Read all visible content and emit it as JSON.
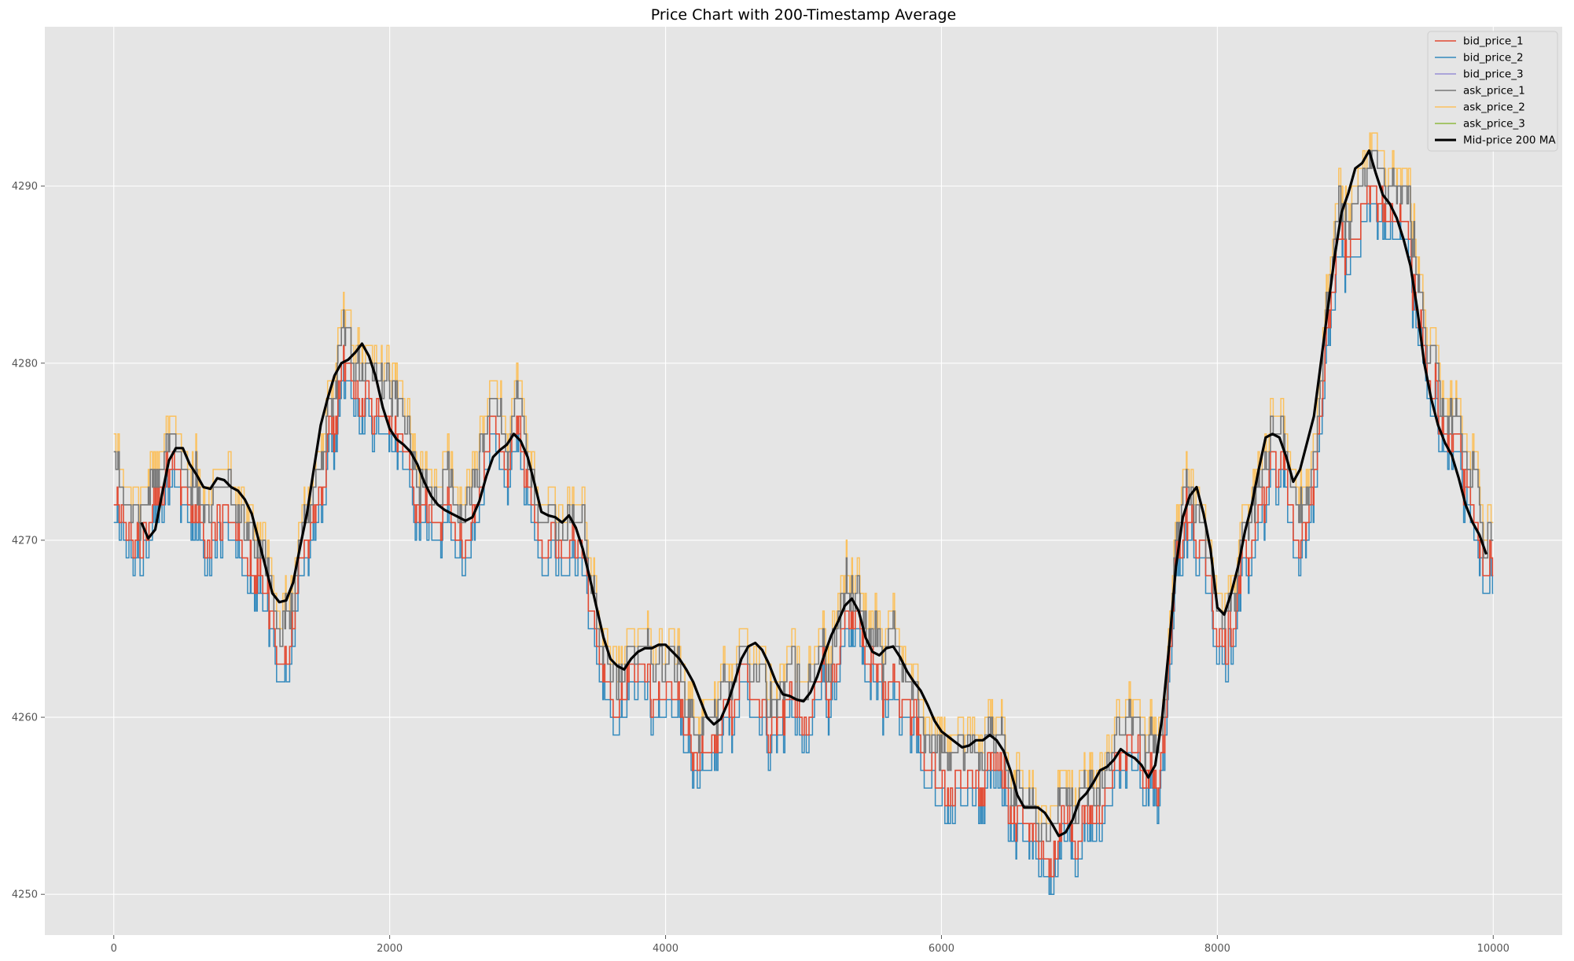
{
  "chart_data": {
    "type": "line",
    "title": "Price Chart with 200-Timestamp Average",
    "xlabel": "",
    "ylabel": "",
    "xlim": [
      -500,
      10500
    ],
    "ylim": [
      4247.7,
      4299.0
    ],
    "xticks": [
      0,
      2000,
      4000,
      6000,
      8000,
      10000
    ],
    "yticks": [
      4250,
      4260,
      4270,
      4280,
      4290
    ],
    "grid": true,
    "legend_position": "top-right",
    "colors": {
      "bid_price_1": "#E24A33",
      "bid_price_2": "#348ABD",
      "bid_price_3": "#988ED5",
      "ask_price_1": "#777777",
      "ask_price_2": "#FBC15E",
      "ask_price_3": "#8EBA42",
      "ma": "#000000"
    },
    "anchors": {
      "mid": [
        [
          0,
          4275
        ],
        [
          100,
          4272
        ],
        [
          200,
          4270.5
        ],
        [
          300,
          4272
        ],
        [
          400,
          4276
        ],
        [
          500,
          4276
        ],
        [
          600,
          4274
        ],
        [
          700,
          4273
        ],
        [
          800,
          4273
        ],
        [
          900,
          4272.5
        ],
        [
          1000,
          4270
        ],
        [
          1100,
          4267
        ],
        [
          1200,
          4266
        ],
        [
          1300,
          4267
        ],
        [
          1400,
          4271
        ],
        [
          1500,
          4275
        ],
        [
          1600,
          4279
        ],
        [
          1700,
          4281
        ],
        [
          1800,
          4281
        ],
        [
          1900,
          4278
        ],
        [
          2000,
          4276
        ],
        [
          2100,
          4275
        ],
        [
          2200,
          4273
        ],
        [
          2300,
          4272
        ],
        [
          2400,
          4272
        ],
        [
          2500,
          4273
        ],
        [
          2600,
          4274
        ],
        [
          2700,
          4275
        ],
        [
          2800,
          4276
        ],
        [
          2900,
          4276.5
        ],
        [
          3000,
          4275
        ],
        [
          3100,
          4272
        ],
        [
          3200,
          4271
        ],
        [
          3300,
          4271
        ],
        [
          3400,
          4270
        ],
        [
          3500,
          4266
        ],
        [
          3600,
          4263
        ],
        [
          3700,
          4263
        ],
        [
          3800,
          4264
        ],
        [
          3900,
          4264
        ],
        [
          4000,
          4264.5
        ],
        [
          4100,
          4263
        ],
        [
          4200,
          4261
        ],
        [
          4300,
          4260
        ],
        [
          4400,
          4261
        ],
        [
          4500,
          4263
        ],
        [
          4600,
          4264
        ],
        [
          4700,
          4263
        ],
        [
          4800,
          4261
        ],
        [
          4900,
          4261
        ],
        [
          5000,
          4261
        ],
        [
          5100,
          4263
        ],
        [
          5200,
          4265
        ],
        [
          5300,
          4267
        ],
        [
          5400,
          4266
        ],
        [
          5500,
          4264
        ],
        [
          5600,
          4264
        ],
        [
          5700,
          4263
        ],
        [
          5800,
          4261.5
        ],
        [
          5900,
          4260
        ],
        [
          6000,
          4259
        ],
        [
          6100,
          4258.5
        ],
        [
          6200,
          4258.5
        ],
        [
          6300,
          4259
        ],
        [
          6400,
          4258.5
        ],
        [
          6500,
          4256
        ],
        [
          6600,
          4254.5
        ],
        [
          6700,
          4254.5
        ],
        [
          6800,
          4253.5
        ],
        [
          6900,
          4254
        ],
        [
          7000,
          4255
        ],
        [
          7100,
          4256.5
        ],
        [
          7200,
          4258
        ],
        [
          7300,
          4258
        ],
        [
          7400,
          4257.5
        ],
        [
          7500,
          4257
        ],
        [
          7600,
          4261
        ],
        [
          7700,
          4268
        ],
        [
          7800,
          4272
        ],
        [
          7900,
          4272
        ],
        [
          8000,
          4266
        ],
        [
          8100,
          4267
        ],
        [
          8200,
          4271
        ],
        [
          8300,
          4274
        ],
        [
          8400,
          4276
        ],
        [
          8500,
          4276
        ],
        [
          8600,
          4273
        ],
        [
          8700,
          4276
        ],
        [
          8800,
          4282
        ],
        [
          8900,
          4287
        ],
        [
          9000,
          4290
        ],
        [
          9100,
          4292
        ],
        [
          9200,
          4291
        ],
        [
          9300,
          4289
        ],
        [
          9400,
          4287
        ],
        [
          9500,
          4282
        ],
        [
          9600,
          4278
        ],
        [
          9700,
          4276
        ],
        [
          9800,
          4274
        ],
        [
          9900,
          4271
        ],
        [
          10000,
          4269
        ]
      ],
      "ma": [
        [
          200,
          4271
        ],
        [
          250,
          4270.1
        ],
        [
          300,
          4270.6
        ],
        [
          350,
          4272.6
        ],
        [
          400,
          4274.5
        ],
        [
          450,
          4275.2
        ],
        [
          500,
          4275.2
        ],
        [
          550,
          4274.3
        ],
        [
          600,
          4273.7
        ],
        [
          650,
          4273
        ],
        [
          700,
          4272.9
        ],
        [
          750,
          4273.5
        ],
        [
          800,
          4273.4
        ],
        [
          850,
          4273
        ],
        [
          900,
          4272.8
        ],
        [
          950,
          4272.3
        ],
        [
          1000,
          4271.5
        ],
        [
          1050,
          4270
        ],
        [
          1100,
          4268.5
        ],
        [
          1150,
          4267
        ],
        [
          1200,
          4266.5
        ],
        [
          1250,
          4266.6
        ],
        [
          1300,
          4267.6
        ],
        [
          1350,
          4269.6
        ],
        [
          1400,
          4271.5
        ],
        [
          1450,
          4274
        ],
        [
          1500,
          4276.5
        ],
        [
          1550,
          4278
        ],
        [
          1600,
          4279.3
        ],
        [
          1650,
          4280
        ],
        [
          1700,
          4280.2
        ],
        [
          1750,
          4280.6
        ],
        [
          1800,
          4281.1
        ],
        [
          1850,
          4280.4
        ],
        [
          1900,
          4279.2
        ],
        [
          1950,
          4277.5
        ],
        [
          2000,
          4276.3
        ],
        [
          2050,
          4275.7
        ],
        [
          2100,
          4275.4
        ],
        [
          2150,
          4275
        ],
        [
          2200,
          4274.3
        ],
        [
          2250,
          4273.3
        ],
        [
          2300,
          4272.5
        ],
        [
          2350,
          4272
        ],
        [
          2400,
          4271.7
        ],
        [
          2450,
          4271.5
        ],
        [
          2500,
          4271.3
        ],
        [
          2550,
          4271.1
        ],
        [
          2600,
          4271.3
        ],
        [
          2650,
          4272.2
        ],
        [
          2700,
          4273.6
        ],
        [
          2750,
          4274.7
        ],
        [
          2800,
          4275.1
        ],
        [
          2850,
          4275.4
        ],
        [
          2900,
          4276
        ],
        [
          2950,
          4275.6
        ],
        [
          3000,
          4274.7
        ],
        [
          3050,
          4273.2
        ],
        [
          3100,
          4271.6
        ],
        [
          3150,
          4271.4
        ],
        [
          3200,
          4271.3
        ],
        [
          3250,
          4271
        ],
        [
          3300,
          4271.4
        ],
        [
          3350,
          4270.7
        ],
        [
          3400,
          4269.5
        ],
        [
          3450,
          4267.9
        ],
        [
          3500,
          4266.2
        ],
        [
          3550,
          4264.5
        ],
        [
          3600,
          4263.3
        ],
        [
          3650,
          4262.9
        ],
        [
          3700,
          4262.7
        ],
        [
          3750,
          4263.3
        ],
        [
          3800,
          4263.7
        ],
        [
          3850,
          4263.9
        ],
        [
          3900,
          4263.9
        ],
        [
          3950,
          4264.1
        ],
        [
          4000,
          4264.1
        ],
        [
          4050,
          4263.7
        ],
        [
          4100,
          4263.3
        ],
        [
          4150,
          4262.7
        ],
        [
          4200,
          4262
        ],
        [
          4250,
          4261
        ],
        [
          4300,
          4260
        ],
        [
          4350,
          4259.6
        ],
        [
          4400,
          4259.9
        ],
        [
          4450,
          4260.8
        ],
        [
          4500,
          4262
        ],
        [
          4550,
          4263.3
        ],
        [
          4600,
          4264
        ],
        [
          4650,
          4264.2
        ],
        [
          4700,
          4263.8
        ],
        [
          4750,
          4263
        ],
        [
          4800,
          4262
        ],
        [
          4850,
          4261.3
        ],
        [
          4900,
          4261.2
        ],
        [
          4950,
          4261
        ],
        [
          5000,
          4260.9
        ],
        [
          5050,
          4261.4
        ],
        [
          5100,
          4262.3
        ],
        [
          5150,
          4263.5
        ],
        [
          5200,
          4264.6
        ],
        [
          5250,
          4265.4
        ],
        [
          5300,
          4266.3
        ],
        [
          5350,
          4266.7
        ],
        [
          5400,
          4266
        ],
        [
          5450,
          4264.5
        ],
        [
          5500,
          4263.7
        ],
        [
          5550,
          4263.5
        ],
        [
          5600,
          4263.9
        ],
        [
          5650,
          4264
        ],
        [
          5700,
          4263.4
        ],
        [
          5750,
          4262.6
        ],
        [
          5800,
          4262
        ],
        [
          5850,
          4261.5
        ],
        [
          5900,
          4260.7
        ],
        [
          5950,
          4259.8
        ],
        [
          6000,
          4259.2
        ],
        [
          6050,
          4258.9
        ],
        [
          6100,
          4258.6
        ],
        [
          6150,
          4258.3
        ],
        [
          6200,
          4258.4
        ],
        [
          6250,
          4258.7
        ],
        [
          6300,
          4258.7
        ],
        [
          6350,
          4259
        ],
        [
          6400,
          4258.7
        ],
        [
          6450,
          4258.1
        ],
        [
          6500,
          4257
        ],
        [
          6550,
          4255.6
        ],
        [
          6600,
          4254.9
        ],
        [
          6650,
          4254.9
        ],
        [
          6700,
          4254.9
        ],
        [
          6750,
          4254.6
        ],
        [
          6800,
          4254
        ],
        [
          6850,
          4253.3
        ],
        [
          6900,
          4253.5
        ],
        [
          6950,
          4254.2
        ],
        [
          7000,
          4255.3
        ],
        [
          7050,
          4255.7
        ],
        [
          7100,
          4256.3
        ],
        [
          7150,
          4257
        ],
        [
          7200,
          4257.2
        ],
        [
          7250,
          4257.6
        ],
        [
          7300,
          4258.2
        ],
        [
          7350,
          4257.9
        ],
        [
          7400,
          4257.7
        ],
        [
          7450,
          4257.3
        ],
        [
          7500,
          4256.6
        ],
        [
          7550,
          4257.3
        ],
        [
          7600,
          4260
        ],
        [
          7650,
          4264
        ],
        [
          7700,
          4268.5
        ],
        [
          7750,
          4271.3
        ],
        [
          7800,
          4272.5
        ],
        [
          7850,
          4273
        ],
        [
          7900,
          4271.5
        ],
        [
          7950,
          4269.5
        ],
        [
          8000,
          4266.2
        ],
        [
          8050,
          4265.8
        ],
        [
          8100,
          4267
        ],
        [
          8150,
          4268.5
        ],
        [
          8200,
          4270.5
        ],
        [
          8250,
          4272
        ],
        [
          8300,
          4274
        ],
        [
          8350,
          4275.8
        ],
        [
          8400,
          4276
        ],
        [
          8450,
          4275.8
        ],
        [
          8500,
          4274.7
        ],
        [
          8550,
          4273.3
        ],
        [
          8600,
          4274
        ],
        [
          8650,
          4275.5
        ],
        [
          8700,
          4277
        ],
        [
          8750,
          4280
        ],
        [
          8800,
          4283
        ],
        [
          8850,
          4286
        ],
        [
          8900,
          4288.5
        ],
        [
          8950,
          4289.6
        ],
        [
          9000,
          4291
        ],
        [
          9050,
          4291.3
        ],
        [
          9100,
          4292
        ],
        [
          9150,
          4290.7
        ],
        [
          9200,
          4289.5
        ],
        [
          9250,
          4289
        ],
        [
          9300,
          4288.2
        ],
        [
          9350,
          4287
        ],
        [
          9400,
          4285.5
        ],
        [
          9450,
          4283
        ],
        [
          9500,
          4280
        ],
        [
          9550,
          4278
        ],
        [
          9600,
          4276.5
        ],
        [
          9650,
          4275.5
        ],
        [
          9700,
          4274.8
        ],
        [
          9750,
          4273.5
        ],
        [
          9800,
          4272
        ],
        [
          9850,
          4271
        ],
        [
          9900,
          4270.3
        ],
        [
          9950,
          4269.2
        ]
      ]
    },
    "series": [
      {
        "name": "bid_price_1"
      },
      {
        "name": "bid_price_2"
      },
      {
        "name": "bid_price_3"
      },
      {
        "name": "ask_price_1"
      },
      {
        "name": "ask_price_2"
      },
      {
        "name": "ask_price_3"
      },
      {
        "name": "Mid-price 200 MA"
      }
    ]
  }
}
